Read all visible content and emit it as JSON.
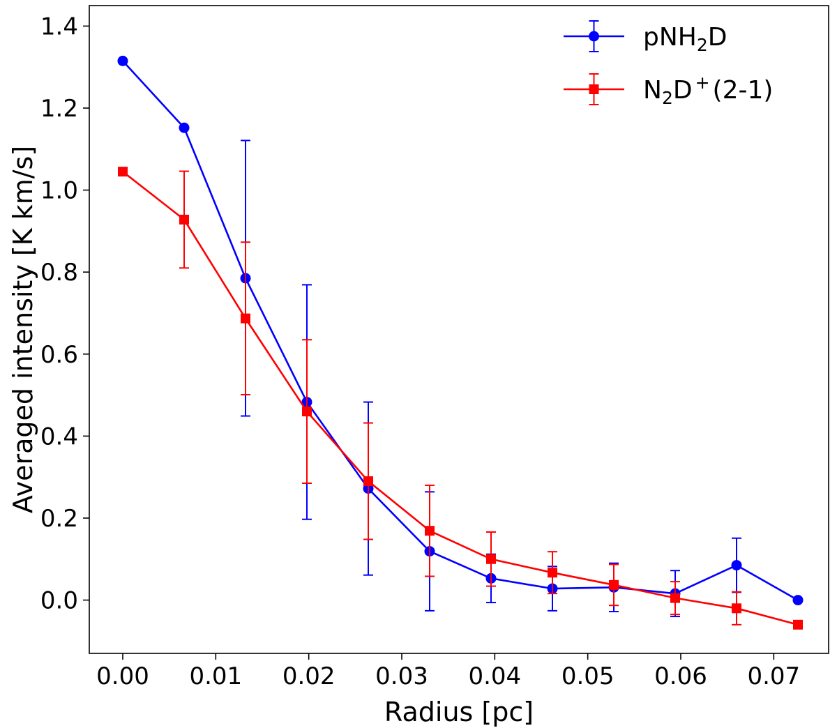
{
  "chart_data": {
    "type": "line",
    "xlabel": "Radius [pc]",
    "ylabel": "Averaged intensity [K km/s]",
    "xlim": [
      -0.0036,
      0.0759
    ],
    "ylim": [
      -0.13,
      1.45
    ],
    "x_ticks": [
      0.0,
      0.01,
      0.02,
      0.03,
      0.04,
      0.05,
      0.06,
      0.07
    ],
    "x_tick_labels": [
      "0.00",
      "0.01",
      "0.02",
      "0.03",
      "0.04",
      "0.05",
      "0.06",
      "0.07"
    ],
    "y_ticks": [
      0.0,
      0.2,
      0.4,
      0.6,
      0.8,
      1.0,
      1.2,
      1.4
    ],
    "y_tick_labels": [
      "0.0",
      "0.2",
      "0.4",
      "0.6",
      "0.8",
      "1.0",
      "1.2",
      "1.4"
    ],
    "grid": false,
    "legend_position": "top-right",
    "series": [
      {
        "name": "pNH2D",
        "legend": {
          "base": "pNH",
          "sub": "2",
          "rest": "D"
        },
        "color": "#0000ff",
        "marker": "circle",
        "x": [
          0.0,
          0.0066,
          0.0132,
          0.0198,
          0.0264,
          0.033,
          0.0396,
          0.0462,
          0.0528,
          0.0594,
          0.066,
          0.0726
        ],
        "y": [
          1.315,
          1.152,
          0.785,
          0.483,
          0.272,
          0.119,
          0.053,
          0.028,
          0.031,
          0.016,
          0.085,
          0.0
        ],
        "yerr": [
          null,
          null,
          0.336,
          0.286,
          0.211,
          0.145,
          0.059,
          0.054,
          0.059,
          0.056,
          0.066,
          null
        ]
      },
      {
        "name": "N2D+(2-1)",
        "legend": {
          "base": "N",
          "sub": "2",
          "mid": "D",
          "sup": "+",
          "rest": "(2-1)"
        },
        "color": "#ff0000",
        "marker": "square",
        "x": [
          0.0,
          0.0066,
          0.0132,
          0.0198,
          0.0264,
          0.033,
          0.0396,
          0.0462,
          0.0528,
          0.0594,
          0.066,
          0.0726
        ],
        "y": [
          1.045,
          0.928,
          0.687,
          0.46,
          0.29,
          0.169,
          0.1,
          0.067,
          0.037,
          0.005,
          -0.02,
          -0.06
        ],
        "yerr": [
          null,
          0.118,
          0.186,
          0.175,
          0.142,
          0.111,
          0.066,
          0.051,
          0.05,
          0.04,
          0.04,
          null
        ]
      }
    ]
  }
}
